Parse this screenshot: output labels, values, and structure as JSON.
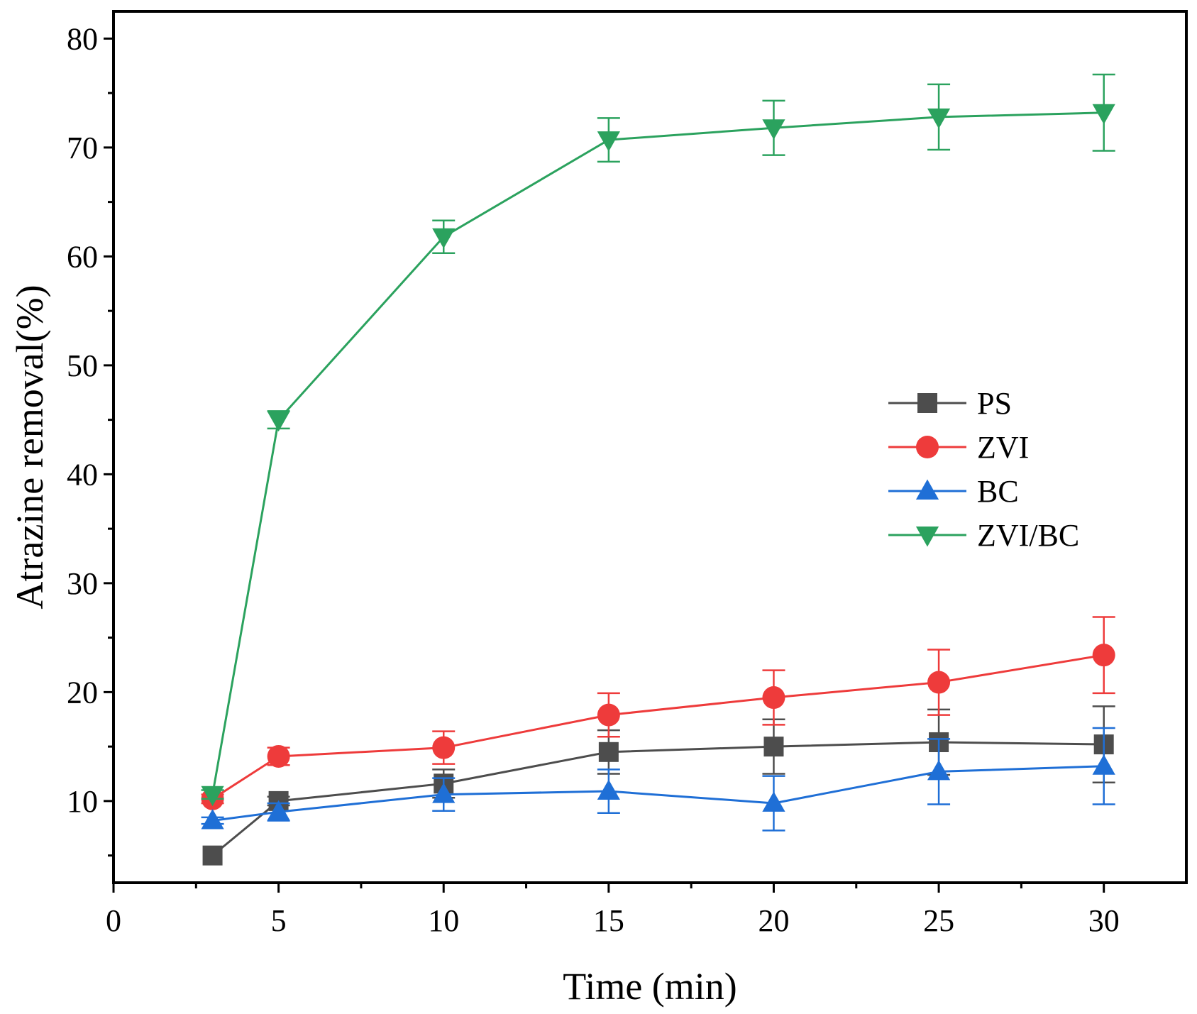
{
  "chart_data": {
    "type": "line",
    "title": "",
    "xlabel": "Time (min)",
    "ylabel": "Atrazine removal(%)",
    "xlim": [
      0,
      32.5
    ],
    "ylim": [
      2.5,
      82.5
    ],
    "xticks": [
      0,
      5,
      10,
      15,
      20,
      25,
      30
    ],
    "yticks": [
      10,
      20,
      30,
      40,
      50,
      60,
      70,
      80
    ],
    "x": [
      3,
      5,
      10,
      15,
      20,
      25,
      30
    ],
    "legend_position": "center-right",
    "series": [
      {
        "name": "PS",
        "marker": "square",
        "color": "#4d4d4d",
        "values": [
          5.0,
          10.0,
          11.6,
          14.5,
          15.0,
          15.4,
          15.2
        ],
        "errors": [
          0.0,
          0.4,
          1.3,
          2.0,
          2.5,
          3.0,
          3.5
        ]
      },
      {
        "name": "ZVI",
        "marker": "circle",
        "color": "#ee3b3b",
        "values": [
          10.2,
          14.1,
          14.9,
          17.9,
          19.5,
          20.9,
          23.4
        ],
        "errors": [
          0.4,
          0.8,
          1.5,
          2.0,
          2.5,
          3.0,
          3.5
        ]
      },
      {
        "name": "BC",
        "marker": "triangle-up",
        "color": "#1f6fd6",
        "values": [
          8.2,
          9.0,
          10.6,
          10.9,
          9.8,
          12.7,
          13.2
        ],
        "errors": [
          0.3,
          0.8,
          1.5,
          2.0,
          2.5,
          3.0,
          3.5
        ]
      },
      {
        "name": "ZVI/BC",
        "marker": "triangle-down",
        "color": "#2ba25e",
        "values": [
          10.6,
          45.0,
          61.8,
          70.7,
          71.8,
          72.8,
          73.2
        ],
        "errors": [
          0.4,
          0.8,
          1.5,
          2.0,
          2.5,
          3.0,
          3.5
        ]
      }
    ]
  }
}
